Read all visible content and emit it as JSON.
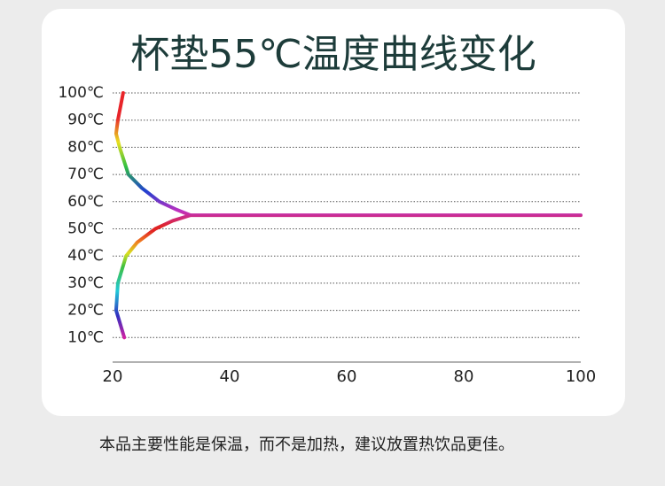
{
  "chart_data": {
    "type": "line",
    "title": "杯垫55℃温度曲线变化",
    "footnote": "本品主要性能是保温，而不是加热，建议放置热饮品更佳。",
    "xlim": [
      20,
      100
    ],
    "xticks": [
      20,
      40,
      60,
      80,
      100
    ],
    "ylim": [
      0,
      100
    ],
    "yticks": [
      {
        "value": 10,
        "label": "10℃"
      },
      {
        "value": 20,
        "label": "20℃"
      },
      {
        "value": 30,
        "label": "30℃"
      },
      {
        "value": 40,
        "label": "40℃"
      },
      {
        "value": 50,
        "label": "50℃"
      },
      {
        "value": 60,
        "label": "60℃"
      },
      {
        "value": 70,
        "label": "70℃"
      },
      {
        "value": 80,
        "label": "80℃"
      },
      {
        "value": 90,
        "label": "90℃"
      },
      {
        "value": 100,
        "label": "100℃"
      }
    ],
    "grid": true,
    "series": [
      {
        "color": "#e02424",
        "x": [
          21.8,
          20.9,
          20.6,
          21.2,
          22.7,
          25,
          28,
          31,
          33.3,
          100
        ],
        "values": [
          100,
          90,
          85,
          80,
          70,
          65,
          60,
          57,
          55,
          55
        ]
      },
      {
        "color": "#e02424",
        "x": [
          22,
          20.6,
          20.9,
          22.3,
          24.2,
          27.3,
          30.3,
          33.3
        ],
        "values": [
          10,
          20,
          30,
          40,
          45,
          50,
          53,
          55
        ]
      }
    ]
  }
}
